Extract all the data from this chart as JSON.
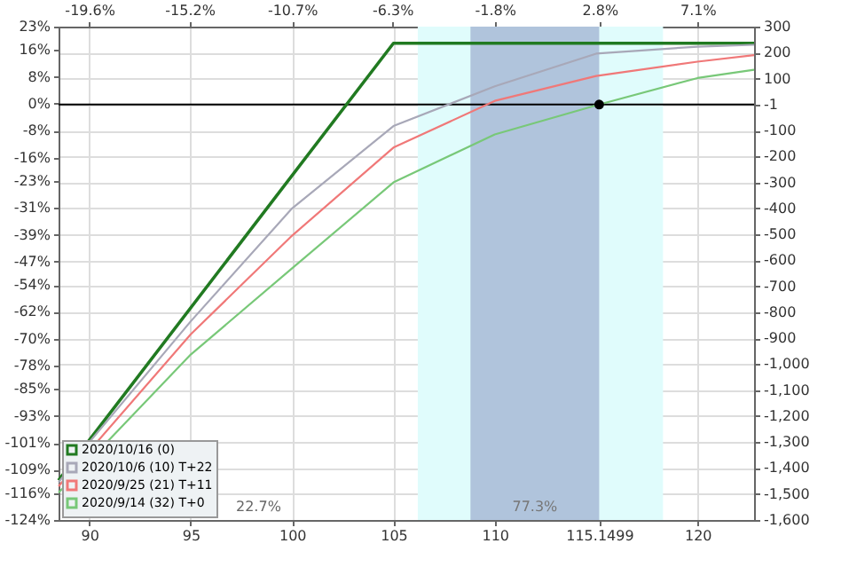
{
  "chart_data": {
    "type": "line",
    "xlim": [
      88.48,
      122.79
    ],
    "xticks": [
      90,
      95,
      100,
      105,
      110,
      115.1499,
      120
    ],
    "x2lim": [
      -20.95,
      9.58
    ],
    "x2ticks": [
      {
        "value": -19.6,
        "label": "-19.6%"
      },
      {
        "value": -15.2,
        "label": "-15.2%"
      },
      {
        "value": -10.7,
        "label": "-10.7%"
      },
      {
        "value": -6.3,
        "label": "-6.3%"
      },
      {
        "value": -1.8,
        "label": "-1.8%"
      },
      {
        "value": 2.8,
        "label": "2.8%"
      },
      {
        "value": 7.1,
        "label": "7.1%"
      }
    ],
    "ylim": [
      -124,
      23
    ],
    "yticks": [
      {
        "value": 23,
        "label": "23%"
      },
      {
        "value": 16,
        "label": "16%"
      },
      {
        "value": 8,
        "label": "8%"
      },
      {
        "value": 0,
        "label": "0%"
      },
      {
        "value": -8,
        "label": "-8%"
      },
      {
        "value": -16,
        "label": "-16%"
      },
      {
        "value": -23,
        "label": "-23%"
      },
      {
        "value": -31,
        "label": "-31%"
      },
      {
        "value": -39,
        "label": "-39%"
      },
      {
        "value": -47,
        "label": "-47%"
      },
      {
        "value": -54,
        "label": "-54%"
      },
      {
        "value": -62,
        "label": "-62%"
      },
      {
        "value": -70,
        "label": "-70%"
      },
      {
        "value": -78,
        "label": "-78%"
      },
      {
        "value": -85,
        "label": "-85%"
      },
      {
        "value": -93,
        "label": "-93%"
      },
      {
        "value": -101,
        "label": "-101%"
      },
      {
        "value": -109,
        "label": "-109%"
      },
      {
        "value": -116,
        "label": "-116%"
      },
      {
        "value": -124,
        "label": "-124%"
      }
    ],
    "y2lim": [
      -1600,
      300
    ],
    "y2ticks": [
      300,
      200,
      100,
      -1,
      -100,
      -200,
      -300,
      -400,
      -500,
      -600,
      -700,
      -800,
      -900,
      {
        "value": -1000,
        "label": "-1,000"
      },
      {
        "value": -1100,
        "label": "-1,100"
      },
      {
        "value": -1200,
        "label": "-1,200"
      },
      {
        "value": -1300,
        "label": "-1,300"
      },
      {
        "value": -1400,
        "label": "-1,400"
      },
      {
        "value": -1500,
        "label": "-1,500"
      },
      {
        "value": -1600,
        "label": "-1,600"
      }
    ],
    "grid": true,
    "legend": "bottom left",
    "line_style": "solid",
    "marker": "none",
    "series": [
      {
        "name": "2020/10/16 (0)",
        "color": "#217a21",
        "axis": "y2",
        "x": [
          88.48,
          105,
          122.79
        ],
        "values": [
          -1447,
          236,
          236
        ]
      },
      {
        "name": "2020/10/6 (10) T+22",
        "color": "#a8a8b8",
        "axis": "y2",
        "x": [
          88.48,
          90,
          95,
          100,
          105,
          110,
          115,
          120,
          122.79
        ],
        "values": [
          -1455,
          -1300,
          -835,
          -400,
          -83,
          70,
          196,
          223,
          230
        ]
      },
      {
        "name": "2020/9/25 (21) T+11",
        "color": "#f07878",
        "axis": "y2",
        "x": [
          88.48,
          95,
          100,
          105,
          110,
          115,
          120,
          122.79
        ],
        "values": [
          -1470,
          -885,
          -505,
          -166,
          14,
          110,
          165,
          190
        ]
      },
      {
        "name": "2020/9/14 (32) T+0",
        "color": "#78c878",
        "axis": "y2",
        "x": [
          88.48,
          95,
          100,
          105,
          110,
          115.1499,
          120,
          122.79
        ],
        "values": [
          -1495,
          -963,
          -631,
          -300,
          -115,
          0,
          102,
          134
        ]
      },
      {
        "type": "scatter",
        "marker": "circle",
        "color": "#000000",
        "axis": "y2",
        "x": [
          115.1499
        ],
        "values": [
          0
        ]
      }
    ],
    "ref_lines": [
      {
        "axis": "y2",
        "value": 0,
        "color": "#000000",
        "line_style": "solid"
      }
    ],
    "bands": [
      {
        "axis": "x",
        "from": 106.2,
        "to": 118.3,
        "color": "#e0fcfc"
      },
      {
        "axis": "x",
        "from": 108.8,
        "to": 115.1499,
        "color": "#b0c4dc",
        "label": "77.3%"
      }
    ],
    "annotations": [
      "22.7%"
    ]
  }
}
